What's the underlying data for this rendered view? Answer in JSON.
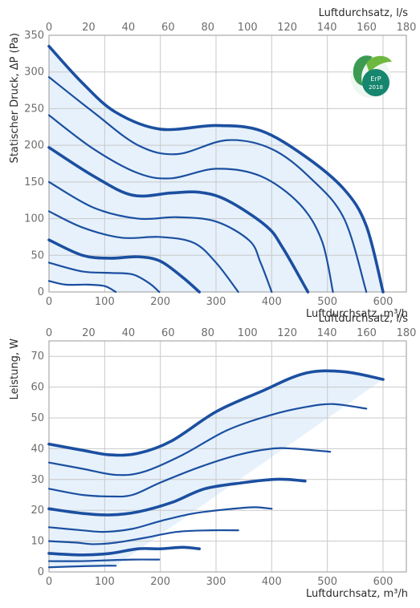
{
  "chart_data": [
    {
      "type": "line",
      "ylabel": "Statischer Druck, ΔP (Pa)",
      "xlabel": "Luftdurchsatz, m³/h",
      "x2label": "Luftdurchsatz, l/s",
      "xlim": [
        0,
        660
      ],
      "ylim": [
        0,
        350
      ],
      "x2lim": [
        0,
        180
      ],
      "xticks": [
        "0",
        "100",
        "200",
        "300",
        "400",
        "500",
        "600"
      ],
      "yticks": [
        "0",
        "50",
        "100",
        "150",
        "200",
        "250",
        "300",
        "350"
      ],
      "x2ticks": [
        "0",
        "20",
        "40",
        "60",
        "80",
        "100",
        "120",
        "140",
        "160",
        "180"
      ],
      "grid": true,
      "badge": {
        "text_top": "ErP",
        "text_bottom": "2018",
        "color": "#16866f"
      },
      "series": [
        {
          "weight": "bold",
          "points": [
            [
              0,
              335
            ],
            [
              60,
              285
            ],
            [
              120,
              245
            ],
            [
              200,
              222
            ],
            [
              300,
              227
            ],
            [
              380,
              220
            ],
            [
              460,
              185
            ],
            [
              530,
              140
            ],
            [
              570,
              90
            ],
            [
              600,
              0
            ]
          ]
        },
        {
          "weight": "thin",
          "points": [
            [
              0,
              293
            ],
            [
              80,
              245
            ],
            [
              160,
              200
            ],
            [
              230,
              188
            ],
            [
              320,
              207
            ],
            [
              400,
              195
            ],
            [
              470,
              155
            ],
            [
              530,
              100
            ],
            [
              570,
              0
            ]
          ]
        },
        {
          "weight": "thin",
          "points": [
            [
              0,
              241
            ],
            [
              80,
              195
            ],
            [
              160,
              162
            ],
            [
              220,
              155
            ],
            [
              300,
              168
            ],
            [
              380,
              158
            ],
            [
              450,
              120
            ],
            [
              490,
              70
            ],
            [
              510,
              0
            ]
          ]
        },
        {
          "weight": "bold",
          "points": [
            [
              0,
              197
            ],
            [
              80,
              158
            ],
            [
              150,
              132
            ],
            [
              220,
              135
            ],
            [
              270,
              136
            ],
            [
              320,
              125
            ],
            [
              390,
              90
            ],
            [
              420,
              60
            ],
            [
              465,
              0
            ]
          ]
        },
        {
          "weight": "thin",
          "points": [
            [
              0,
              150
            ],
            [
              80,
              115
            ],
            [
              160,
              100
            ],
            [
              230,
              102
            ],
            [
              300,
              96
            ],
            [
              360,
              70
            ],
            [
              380,
              40
            ],
            [
              400,
              0
            ]
          ]
        },
        {
          "weight": "thin",
          "points": [
            [
              0,
              110
            ],
            [
              60,
              88
            ],
            [
              130,
              74
            ],
            [
              200,
              75
            ],
            [
              260,
              67
            ],
            [
              300,
              40
            ],
            [
              340,
              0
            ]
          ]
        },
        {
          "weight": "bold",
          "points": [
            [
              0,
              71
            ],
            [
              60,
              50
            ],
            [
              110,
              46
            ],
            [
              160,
              48
            ],
            [
              200,
              42
            ],
            [
              240,
              20
            ],
            [
              270,
              0
            ]
          ]
        },
        {
          "weight": "thin",
          "points": [
            [
              0,
              40
            ],
            [
              60,
              28
            ],
            [
              110,
              26
            ],
            [
              150,
              24
            ],
            [
              180,
              12
            ],
            [
              198,
              0
            ]
          ]
        },
        {
          "weight": "thin",
          "points": [
            [
              0,
              15
            ],
            [
              30,
              10
            ],
            [
              70,
              10
            ],
            [
              100,
              8
            ],
            [
              120,
              0
            ]
          ]
        }
      ]
    },
    {
      "type": "line",
      "ylabel": "Leistung, W",
      "xlabel": "Luftdurchsatz, m³/h",
      "x2label": "Luftdurchsatz, l/s",
      "xlim": [
        0,
        660
      ],
      "ylim": [
        0,
        75
      ],
      "x2lim": [
        0,
        180
      ],
      "xticks": [
        "0",
        "100",
        "200",
        "300",
        "400",
        "500",
        "600"
      ],
      "yticks": [
        "0",
        "10",
        "20",
        "30",
        "40",
        "50",
        "60",
        "70"
      ],
      "x2ticks": [
        "0",
        "20",
        "40",
        "60",
        "80",
        "100",
        "120",
        "140",
        "160",
        "180"
      ],
      "grid": true,
      "series": [
        {
          "weight": "bold",
          "points": [
            [
              0,
              41.5
            ],
            [
              60,
              39.5
            ],
            [
              110,
              38
            ],
            [
              160,
              38.5
            ],
            [
              220,
              42.5
            ],
            [
              300,
              52
            ],
            [
              380,
              58.5
            ],
            [
              460,
              64.5
            ],
            [
              530,
              65
            ],
            [
              600,
              62.5
            ]
          ]
        },
        {
          "weight": "thin",
          "points": [
            [
              0,
              35.5
            ],
            [
              60,
              33.5
            ],
            [
              120,
              31.5
            ],
            [
              170,
              32.5
            ],
            [
              240,
              38
            ],
            [
              320,
              46
            ],
            [
              400,
              51
            ],
            [
              460,
              53.5
            ],
            [
              510,
              54.5
            ],
            [
              570,
              53
            ]
          ]
        },
        {
          "weight": "thin",
          "points": [
            [
              0,
              27
            ],
            [
              60,
              25
            ],
            [
              110,
              24.5
            ],
            [
              150,
              25
            ],
            [
              200,
              29
            ],
            [
              270,
              34
            ],
            [
              340,
              38
            ],
            [
              400,
              40
            ],
            [
              440,
              40
            ],
            [
              505,
              39
            ]
          ]
        },
        {
          "weight": "bold",
          "points": [
            [
              0,
              20.5
            ],
            [
              60,
              19
            ],
            [
              110,
              18.5
            ],
            [
              160,
              19.5
            ],
            [
              220,
              22.5
            ],
            [
              280,
              27
            ],
            [
              350,
              29
            ],
            [
              400,
              30
            ],
            [
              430,
              30
            ],
            [
              460,
              29.5
            ]
          ]
        },
        {
          "weight": "thin",
          "points": [
            [
              0,
              14.5
            ],
            [
              60,
              13.5
            ],
            [
              100,
              13
            ],
            [
              150,
              14
            ],
            [
              200,
              16.5
            ],
            [
              260,
              19
            ],
            [
              330,
              20.5
            ],
            [
              370,
              21
            ],
            [
              400,
              20.5
            ]
          ]
        },
        {
          "weight": "thin",
          "points": [
            [
              0,
              10
            ],
            [
              50,
              9.5
            ],
            [
              80,
              9
            ],
            [
              120,
              9.5
            ],
            [
              170,
              11
            ],
            [
              230,
              13
            ],
            [
              290,
              13.5
            ],
            [
              340,
              13.5
            ]
          ]
        },
        {
          "weight": "bold",
          "points": [
            [
              0,
              6
            ],
            [
              60,
              5.5
            ],
            [
              110,
              6
            ],
            [
              160,
              7.5
            ],
            [
              200,
              7.5
            ],
            [
              240,
              8
            ],
            [
              270,
              7.5
            ]
          ]
        },
        {
          "weight": "thin",
          "points": [
            [
              0,
              3.5
            ],
            [
              60,
              3.5
            ],
            [
              110,
              3.8
            ],
            [
              150,
              4
            ],
            [
              198,
              4
            ]
          ]
        },
        {
          "weight": "thin",
          "points": [
            [
              0,
              1.5
            ],
            [
              50,
              1.8
            ],
            [
              100,
              2
            ],
            [
              120,
              2
            ]
          ]
        }
      ]
    }
  ]
}
